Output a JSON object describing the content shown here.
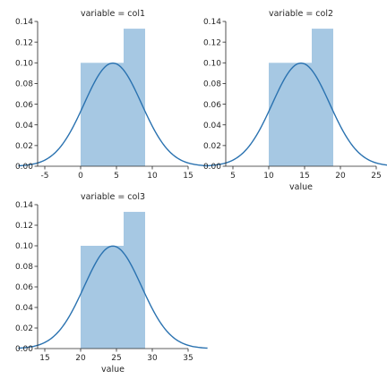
{
  "chart_data": [
    {
      "type": "histogram",
      "title": "variable = col1",
      "xlabel": "",
      "ylabel": "",
      "xlim": [
        -6,
        15
      ],
      "ylim": [
        0,
        0.14
      ],
      "xticks": [
        -5,
        0,
        5,
        10,
        15
      ],
      "yticks": [
        0.0,
        0.02,
        0.04,
        0.06,
        0.08,
        0.1,
        0.12,
        0.14
      ],
      "bins": [
        {
          "x0": 0,
          "x1": 3,
          "density": 0.1
        },
        {
          "x0": 3,
          "x1": 6,
          "density": 0.1
        },
        {
          "x0": 6,
          "x1": 9,
          "density": 0.133
        }
      ],
      "kde": {
        "mean": 4.5,
        "sd": 4.0
      },
      "colors": {
        "bars": "#a6c8e3",
        "kde": "#2a72b0"
      }
    },
    {
      "type": "histogram",
      "title": "variable = col2",
      "xlabel": "value",
      "ylabel": "",
      "xlim": [
        4,
        25
      ],
      "ylim": [
        0,
        0.14
      ],
      "xticks": [
        5,
        10,
        15,
        20,
        25
      ],
      "yticks": [
        0.0,
        0.02,
        0.04,
        0.06,
        0.08,
        0.1,
        0.12,
        0.14
      ],
      "bins": [
        {
          "x0": 10,
          "x1": 13,
          "density": 0.1
        },
        {
          "x0": 13,
          "x1": 16,
          "density": 0.1
        },
        {
          "x0": 16,
          "x1": 19,
          "density": 0.133
        }
      ],
      "kde": {
        "mean": 14.5,
        "sd": 4.0
      },
      "colors": {
        "bars": "#a6c8e3",
        "kde": "#2a72b0"
      }
    },
    {
      "type": "histogram",
      "title": "variable = col3",
      "xlabel": "value",
      "ylabel": "",
      "xlim": [
        14,
        35
      ],
      "ylim": [
        0,
        0.14
      ],
      "xticks": [
        15,
        20,
        25,
        30,
        35
      ],
      "yticks": [
        0.0,
        0.02,
        0.04,
        0.06,
        0.08,
        0.1,
        0.12,
        0.14
      ],
      "bins": [
        {
          "x0": 20,
          "x1": 23,
          "density": 0.1
        },
        {
          "x0": 23,
          "x1": 26,
          "density": 0.1
        },
        {
          "x0": 26,
          "x1": 29,
          "density": 0.133
        }
      ],
      "kde": {
        "mean": 24.5,
        "sd": 4.0
      },
      "colors": {
        "bars": "#a6c8e3",
        "kde": "#2a72b0"
      }
    }
  ]
}
